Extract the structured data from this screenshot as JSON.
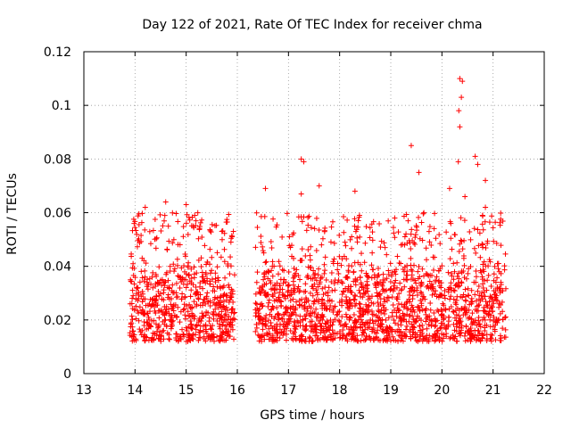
{
  "chart_data": {
    "type": "scatter",
    "title": "Day 122 of 2021, Rate Of TEC Index for receiver chma",
    "xlabel": "GPS time / hours",
    "ylabel": "ROTI / TECUs",
    "xlim": [
      13,
      22
    ],
    "ylim": [
      0,
      0.12
    ],
    "x_ticks": [
      "13",
      "14",
      "15",
      "16",
      "17",
      "18",
      "19",
      "20",
      "21",
      "22"
    ],
    "y_ticks": [
      "0",
      "0.02",
      "0.04",
      "0.06",
      "0.08",
      "0.1",
      "0.12"
    ],
    "grid": true,
    "legend": "none",
    "marker": "plus",
    "color": "#ff0000",
    "series": [
      {
        "x_range": [
          13.9,
          21.25
        ],
        "gap": [
          15.95,
          16.35
        ],
        "typical_range": [
          0.012,
          0.048
        ],
        "outliers": [
          {
            "x": 14.2,
            "y": 0.062
          },
          {
            "x": 14.6,
            "y": 0.064
          },
          {
            "x": 15.0,
            "y": 0.063
          },
          {
            "x": 16.55,
            "y": 0.069
          },
          {
            "x": 17.25,
            "y": 0.08
          },
          {
            "x": 17.3,
            "y": 0.079
          },
          {
            "x": 17.25,
            "y": 0.067
          },
          {
            "x": 17.6,
            "y": 0.07
          },
          {
            "x": 18.3,
            "y": 0.068
          },
          {
            "x": 19.4,
            "y": 0.085
          },
          {
            "x": 19.55,
            "y": 0.075
          },
          {
            "x": 20.15,
            "y": 0.069
          },
          {
            "x": 20.35,
            "y": 0.11
          },
          {
            "x": 20.4,
            "y": 0.109
          },
          {
            "x": 20.38,
            "y": 0.103
          },
          {
            "x": 20.33,
            "y": 0.098
          },
          {
            "x": 20.35,
            "y": 0.092
          },
          {
            "x": 20.32,
            "y": 0.079
          },
          {
            "x": 20.65,
            "y": 0.081
          },
          {
            "x": 20.7,
            "y": 0.078
          },
          {
            "x": 20.85,
            "y": 0.072
          },
          {
            "x": 20.85,
            "y": 0.062
          },
          {
            "x": 20.45,
            "y": 0.066
          }
        ]
      }
    ]
  }
}
